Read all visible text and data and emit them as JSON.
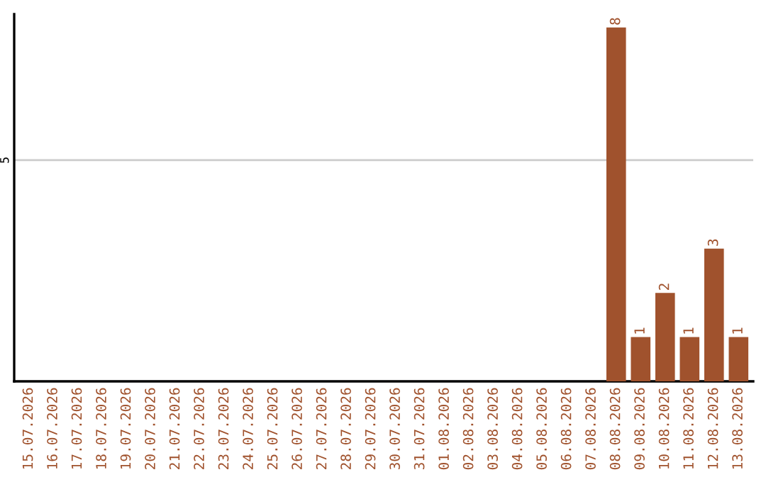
{
  "chart_data": {
    "type": "bar",
    "categories": [
      "15.07.2026",
      "16.07.2026",
      "17.07.2026",
      "18.07.2026",
      "19.07.2026",
      "20.07.2026",
      "21.07.2026",
      "22.07.2026",
      "23.07.2026",
      "24.07.2026",
      "25.07.2026",
      "26.07.2026",
      "27.07.2026",
      "28.07.2026",
      "29.07.2026",
      "30.07.2026",
      "31.07.2026",
      "01.08.2026",
      "02.08.2026",
      "03.08.2026",
      "04.08.2026",
      "05.08.2026",
      "06.08.2026",
      "07.08.2026",
      "08.08.2026",
      "09.08.2026",
      "10.08.2026",
      "11.08.2026",
      "12.08.2026",
      "13.08.2026"
    ],
    "values": [
      null,
      null,
      null,
      null,
      null,
      null,
      null,
      null,
      null,
      null,
      null,
      null,
      null,
      null,
      null,
      null,
      null,
      null,
      null,
      null,
      null,
      null,
      null,
      null,
      8,
      1,
      2,
      1,
      3,
      1
    ],
    "value_labels": [
      null,
      null,
      null,
      null,
      null,
      null,
      null,
      null,
      null,
      null,
      null,
      null,
      null,
      null,
      null,
      null,
      null,
      null,
      null,
      null,
      null,
      null,
      null,
      null,
      "8",
      "1",
      "2",
      "1",
      "3",
      "1"
    ],
    "ylim": [
      0,
      8.3
    ],
    "color": "#a0522d",
    "ref_lines": [
      {
        "axis": "y",
        "value": 5,
        "label": "5",
        "color": "#cccccc"
      }
    ]
  }
}
